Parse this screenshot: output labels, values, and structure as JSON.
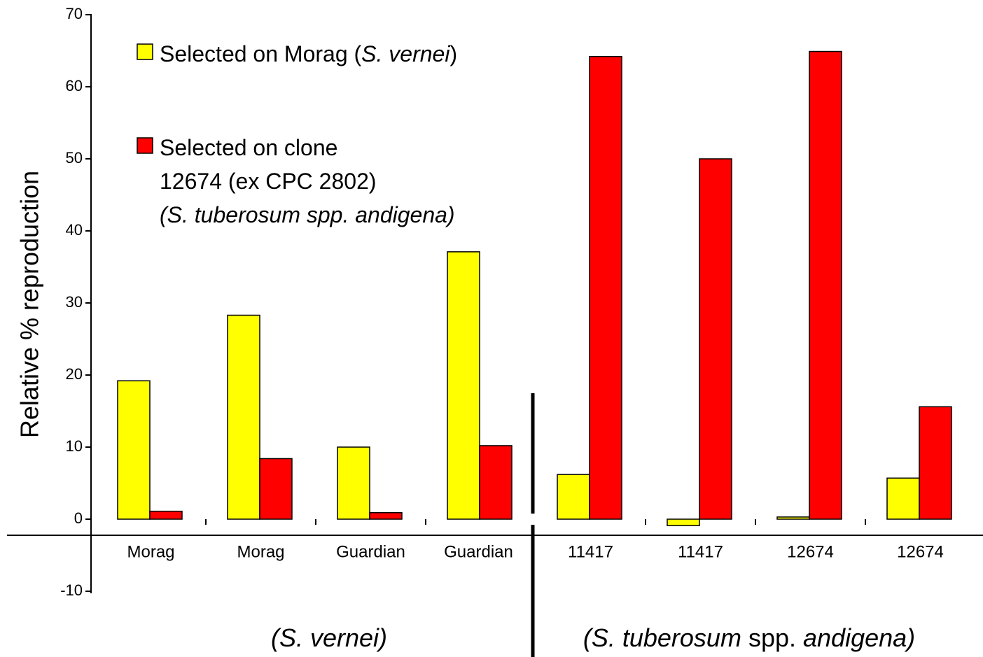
{
  "chart_data": {
    "type": "bar",
    "y_label": "Relative % reproduction",
    "categories": [
      "Morag",
      "Morag",
      "Guardian",
      "Guardian",
      "11417",
      "11417",
      "12674",
      "12674"
    ],
    "series": [
      {
        "name": [
          [
            {
              "text": "Selected on Morag ("
            },
            {
              "text": "S. vernei",
              "italic": true
            },
            {
              "text": ")"
            }
          ]
        ],
        "name_color": "#c0504d",
        "color": "#ffff00",
        "values": [
          19.2,
          28.3,
          10.0,
          37.1,
          6.2,
          -0.9,
          0.3,
          5.7
        ]
      },
      {
        "name": [
          [
            {
              "text": "Selected on clone"
            }
          ],
          [
            {
              "text": "12674 (ex CPC 2802)"
            }
          ],
          [
            {
              "text": "(S. tuberosum spp. andigena)",
              "italic": true
            }
          ]
        ],
        "name_color": "#0000ff",
        "color": "#ff0000",
        "values": [
          1.1,
          8.4,
          0.9,
          10.2,
          64.2,
          50.0,
          64.9,
          15.6
        ]
      }
    ],
    "ylim": [
      -10,
      70
    ],
    "yticks": [
      -10,
      0,
      10,
      20,
      30,
      40,
      50,
      60,
      70
    ],
    "annotations": [
      {
        "color": "#c0504d",
        "text": [
          {
            "text": "(S. vernei)",
            "italic": true
          }
        ]
      },
      {
        "color": "#1a1acc",
        "text": [
          {
            "text": "(S. tuberosum",
            "italic": true
          },
          {
            "text": " spp. "
          },
          {
            "text": "andigena)",
            "italic": true
          }
        ]
      }
    ]
  }
}
